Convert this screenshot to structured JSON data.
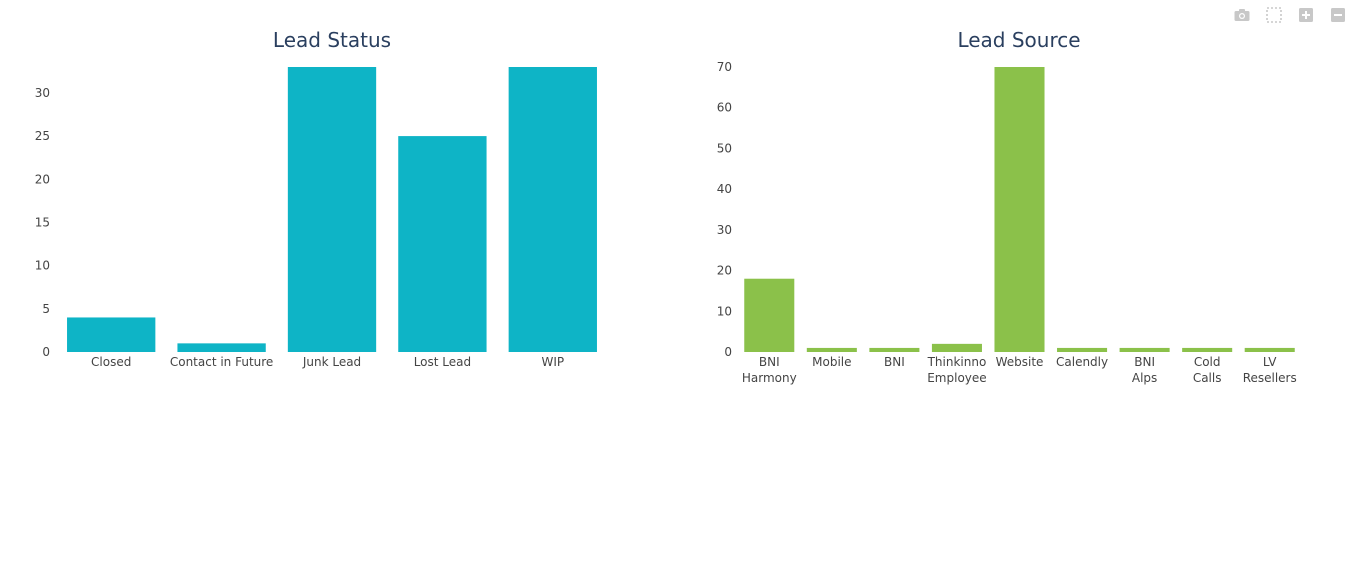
{
  "modebar": {
    "icons": [
      "camera-icon",
      "box-select-icon",
      "zoom-in-icon",
      "zoom-out-icon"
    ],
    "icon_color": "#c8c8c8"
  },
  "chart_data": [
    {
      "type": "bar",
      "title": "Lead Status",
      "categories": [
        [
          "Closed"
        ],
        [
          "Contact in Future"
        ],
        [
          "Junk Lead"
        ],
        [
          "Lost Lead"
        ],
        [
          "WIP"
        ]
      ],
      "values": [
        4,
        1,
        33,
        25,
        33
      ],
      "ylim": [
        0,
        33
      ],
      "yticks": [
        0,
        5,
        10,
        15,
        20,
        25,
        30
      ],
      "xlabel": "",
      "ylabel": "",
      "color": "#0eb4c6",
      "grid": false
    },
    {
      "type": "bar",
      "title": "Lead Source",
      "categories": [
        [
          "BNI",
          "Harmony"
        ],
        [
          "Mobile"
        ],
        [
          "BNI"
        ],
        [
          "Thinkinno",
          "Employee"
        ],
        [
          "Website"
        ],
        [
          "Calendly"
        ],
        [
          "BNI",
          "Alps"
        ],
        [
          "Cold",
          "Calls"
        ],
        [
          "LV",
          "Resellers"
        ]
      ],
      "values": [
        18,
        1,
        1,
        2,
        70,
        1,
        1,
        1,
        1
      ],
      "ylim": [
        0,
        70
      ],
      "yticks": [
        0,
        10,
        20,
        30,
        40,
        50,
        60,
        70
      ],
      "xlabel": "",
      "ylabel": "",
      "color": "#8bc14a",
      "grid": false
    }
  ]
}
